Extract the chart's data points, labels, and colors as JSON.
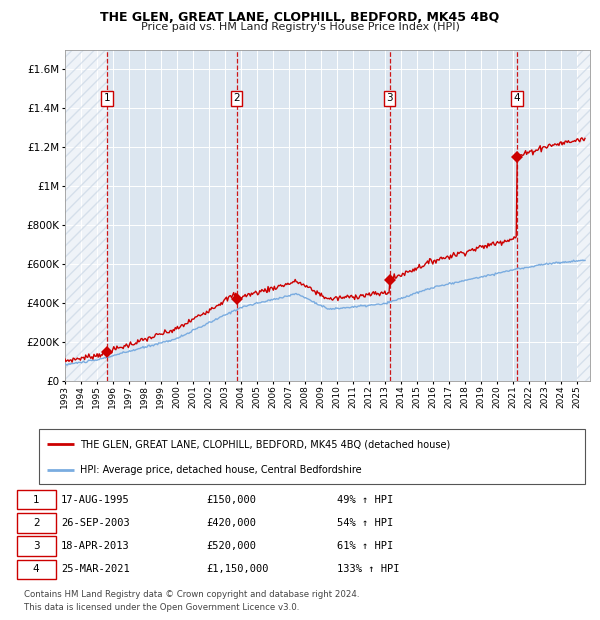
{
  "title": "THE GLEN, GREAT LANE, CLOPHILL, BEDFORD, MK45 4BQ",
  "subtitle": "Price paid vs. HM Land Registry's House Price Index (HPI)",
  "hpi_color": "#7aace0",
  "price_color": "#cc0000",
  "marker_color": "#cc0000",
  "background_color": "#dce6f0",
  "vline_color": "#cc0000",
  "xlim_start": 1993.0,
  "xlim_end": 2025.8,
  "ylim_min": 0,
  "ylim_max": 1700000,
  "yticks": [
    0,
    200000,
    400000,
    600000,
    800000,
    1000000,
    1200000,
    1400000,
    1600000
  ],
  "transactions": [
    {
      "num": 1,
      "date_label": "17-AUG-1995",
      "year": 1995.62,
      "price": 150000,
      "price_label": "£150,000",
      "pct": "49%",
      "arrow": "↑"
    },
    {
      "num": 2,
      "date_label": "26-SEP-2003",
      "year": 2003.73,
      "price": 420000,
      "price_label": "£420,000",
      "pct": "54%",
      "arrow": "↑"
    },
    {
      "num": 3,
      "date_label": "18-APR-2013",
      "year": 2013.29,
      "price": 520000,
      "price_label": "£520,000",
      "pct": "61%",
      "arrow": "↑"
    },
    {
      "num": 4,
      "date_label": "25-MAR-2021",
      "year": 2021.23,
      "price": 1150000,
      "price_label": "£1,150,000",
      "pct": "133%",
      "arrow": "↑"
    }
  ],
  "legend_house_label": "THE GLEN, GREAT LANE, CLOPHILL, BEDFORD, MK45 4BQ (detached house)",
  "legend_hpi_label": "HPI: Average price, detached house, Central Bedfordshire",
  "footer": "Contains HM Land Registry data © Crown copyright and database right 2024.\nThis data is licensed under the Open Government Licence v3.0."
}
